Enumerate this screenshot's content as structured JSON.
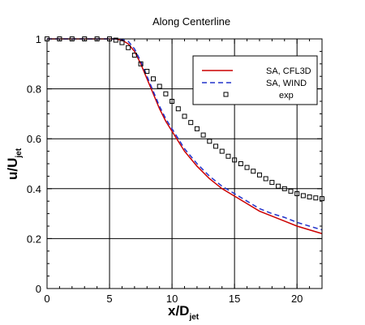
{
  "chart_data": {
    "type": "line",
    "title": "Along Centerline",
    "xlabel": {
      "main": "x/D",
      "sub": "jet"
    },
    "ylabel": {
      "main": "u/U",
      "sub": "jet"
    },
    "xlim": [
      0,
      22
    ],
    "ylim": [
      0,
      1
    ],
    "xticks": [
      0,
      5,
      10,
      15,
      20
    ],
    "yticks": [
      0,
      0.2,
      0.4,
      0.6,
      0.8,
      1
    ],
    "ytick_labels": [
      "0",
      "0.2",
      "0.4",
      "0.6",
      "0.8",
      "1"
    ],
    "grid": true,
    "legend_position": "top-right",
    "series": [
      {
        "name": "SA, CFL3D",
        "style": "solid",
        "color": "#cc0000",
        "x": [
          0,
          5.5,
          6.0,
          6.5,
          7.0,
          7.5,
          8.0,
          8.5,
          9.0,
          9.5,
          10,
          11,
          12,
          13,
          14,
          15,
          16,
          17,
          18,
          19,
          20,
          21,
          22
        ],
        "y": [
          1.0,
          1.0,
          0.995,
          0.98,
          0.95,
          0.9,
          0.84,
          0.78,
          0.72,
          0.67,
          0.63,
          0.55,
          0.49,
          0.44,
          0.4,
          0.37,
          0.34,
          0.31,
          0.29,
          0.27,
          0.25,
          0.235,
          0.22
        ]
      },
      {
        "name": "SA, WIND",
        "style": "dashed",
        "color": "#2233cc",
        "x": [
          0,
          5.5,
          6.0,
          6.5,
          7.0,
          7.5,
          8.0,
          8.5,
          9.0,
          9.5,
          10,
          11,
          12,
          13,
          14,
          15,
          16,
          17,
          18,
          19,
          20,
          21,
          22
        ],
        "y": [
          1.0,
          1.0,
          0.998,
          0.99,
          0.96,
          0.91,
          0.85,
          0.79,
          0.73,
          0.68,
          0.64,
          0.56,
          0.5,
          0.45,
          0.41,
          0.38,
          0.35,
          0.32,
          0.3,
          0.285,
          0.265,
          0.25,
          0.235
        ]
      },
      {
        "name": "exp",
        "style": "markers",
        "marker": "square",
        "color": "#000000",
        "x": [
          0,
          1,
          2,
          3,
          4,
          5,
          5.5,
          6,
          6.5,
          7,
          7.5,
          8,
          8.5,
          9,
          9.5,
          10,
          10.5,
          11,
          11.5,
          12,
          12.5,
          13,
          13.5,
          14,
          14.5,
          15,
          15.5,
          16,
          16.5,
          17,
          17.5,
          18,
          18.5,
          19,
          19.5,
          20,
          20.5,
          21,
          21.5,
          22
        ],
        "y": [
          1.0,
          1.0,
          1.0,
          1.0,
          1.0,
          1.0,
          0.995,
          0.985,
          0.965,
          0.935,
          0.9,
          0.87,
          0.84,
          0.81,
          0.78,
          0.75,
          0.72,
          0.69,
          0.665,
          0.64,
          0.615,
          0.59,
          0.57,
          0.55,
          0.53,
          0.515,
          0.5,
          0.485,
          0.47,
          0.455,
          0.44,
          0.425,
          0.41,
          0.4,
          0.39,
          0.38,
          0.372,
          0.367,
          0.363,
          0.36
        ]
      }
    ]
  }
}
